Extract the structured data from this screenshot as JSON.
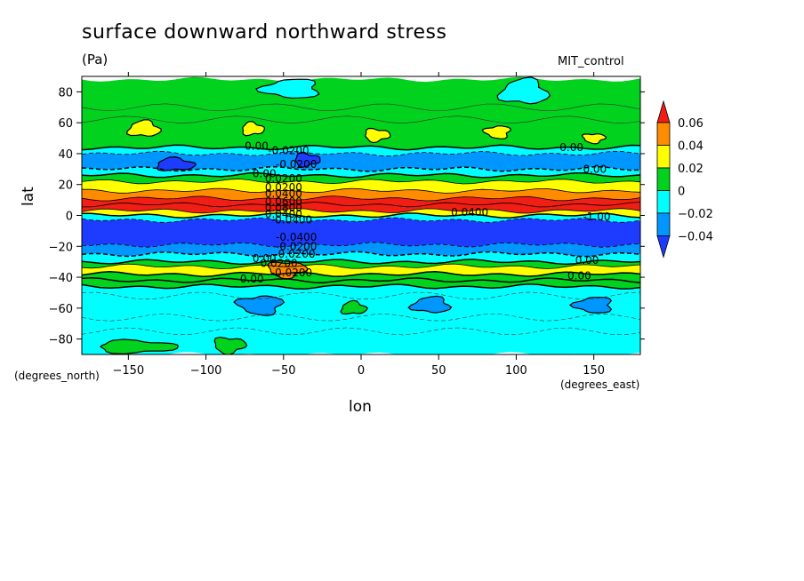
{
  "chart_data": {
    "type": "heatmap",
    "title": "surface downward northward stress",
    "units": "(Pa)",
    "dataset": "MIT_control",
    "xlabel": "lon",
    "ylabel": "lat",
    "x_units": "(degrees_east)",
    "y_units": "(degrees_north)",
    "xlim": [
      -180,
      180
    ],
    "ylim": [
      -90,
      90
    ],
    "x_ticks": [
      -150,
      -100,
      -50,
      0,
      50,
      100,
      150
    ],
    "y_ticks": [
      80,
      60,
      40,
      20,
      0,
      -20,
      -40,
      -60,
      -80
    ],
    "legend": {
      "position": "right",
      "levels": [
        "0.06",
        "0.04",
        "0.02",
        "0",
        "−0.02",
        "−0.04"
      ],
      "colors": [
        "#f01e14",
        "#ff8c00",
        "#ffff00",
        "#00d21e",
        "#00ffff",
        "#0096ff",
        "#1e3cff"
      ]
    },
    "bands": [
      {
        "lat_min": 44,
        "lat_max": 88,
        "value": 0.01
      },
      {
        "lat_min": 40,
        "lat_max": 44,
        "value": -0.01
      },
      {
        "lat_min": 30,
        "lat_max": 40,
        "value": -0.03
      },
      {
        "lat_min": 26,
        "lat_max": 30,
        "value": -0.01
      },
      {
        "lat_min": 22,
        "lat_max": 26,
        "value": 0.01
      },
      {
        "lat_min": 16,
        "lat_max": 22,
        "value": 0.03
      },
      {
        "lat_min": 11,
        "lat_max": 16,
        "value": 0.05
      },
      {
        "lat_min": 7,
        "lat_max": 11,
        "value": 0.07
      },
      {
        "lat_min": 3,
        "lat_max": 7,
        "value": 0.09
      },
      {
        "lat_min": 0,
        "lat_max": 3,
        "value": 0.03
      },
      {
        "lat_min": -3,
        "lat_max": 0,
        "value": -0.01
      },
      {
        "lat_min": -19,
        "lat_max": -3,
        "value": -0.05
      },
      {
        "lat_min": -25,
        "lat_max": -19,
        "value": -0.03
      },
      {
        "lat_min": -30,
        "lat_max": -25,
        "value": -0.01
      },
      {
        "lat_min": -33,
        "lat_max": -30,
        "value": 0.01
      },
      {
        "lat_min": -38,
        "lat_max": -33,
        "value": 0.03
      },
      {
        "lat_min": -42,
        "lat_max": -38,
        "value": 0.01
      },
      {
        "lat_min": -46,
        "lat_max": -42,
        "value": 0.01
      },
      {
        "lat_min": -90,
        "lat_max": -46,
        "value": -0.01
      }
    ],
    "blobs": [
      {
        "lon": -140,
        "lat": 56,
        "rlon": 10,
        "rlat": 5,
        "value": 0.03
      },
      {
        "lon": -70,
        "lat": 56,
        "rlon": 7,
        "rlat": 4,
        "value": 0.03
      },
      {
        "lon": 10,
        "lat": 52,
        "rlon": 8,
        "rlat": 4,
        "value": 0.03
      },
      {
        "lon": 150,
        "lat": 50,
        "rlon": 7,
        "rlat": 3,
        "value": 0.03
      },
      {
        "lon": 88,
        "lat": 54,
        "rlon": 8,
        "rlat": 4,
        "value": 0.03
      },
      {
        "lon": -45,
        "lat": 82,
        "rlon": 18,
        "rlat": 6,
        "value": -0.01
      },
      {
        "lon": 105,
        "lat": 80,
        "rlon": 15,
        "rlat": 8,
        "value": -0.01
      },
      {
        "lon": -120,
        "lat": 33,
        "rlon": 12,
        "rlat": 4,
        "value": -0.05
      },
      {
        "lon": -35,
        "lat": 36,
        "rlon": 8,
        "rlat": 4,
        "value": -0.05
      },
      {
        "lon": -48,
        "lat": -35,
        "rlon": 12,
        "rlat": 5,
        "value": 0.05
      },
      {
        "lon": -65,
        "lat": -58,
        "rlon": 14,
        "rlat": 6,
        "value": -0.03
      },
      {
        "lon": 150,
        "lat": -58,
        "rlon": 12,
        "rlat": 5,
        "value": -0.03
      },
      {
        "lon": 45,
        "lat": -58,
        "rlon": 12,
        "rlat": 5,
        "value": -0.03
      },
      {
        "lon": -5,
        "lat": -60,
        "rlon": 8,
        "rlat": 4,
        "value": 0.01
      },
      {
        "lon": -145,
        "lat": -85,
        "rlon": 25,
        "rlat": 4,
        "value": 0.01
      },
      {
        "lon": -85,
        "lat": -84,
        "rlon": 10,
        "rlat": 5,
        "value": 0.01
      }
    ],
    "contour_labels": [
      {
        "text": "0.00",
        "lon": -75,
        "lat": 45
      },
      {
        "text": "-0.0200",
        "lon": -60,
        "lat": 42
      },
      {
        "text": "-0.0200",
        "lon": -55,
        "lat": 33
      },
      {
        "text": "0.00",
        "lon": -70,
        "lat": 27
      },
      {
        "text": "0.0200",
        "lon": -62,
        "lat": 24
      },
      {
        "text": "0.0200",
        "lon": -62,
        "lat": 18
      },
      {
        "text": "0.0400",
        "lon": -62,
        "lat": 14
      },
      {
        "text": "0.0600",
        "lon": -62,
        "lat": 9
      },
      {
        "text": "0.0800",
        "lon": -62,
        "lat": 5
      },
      {
        "text": "0.0400",
        "lon": -62,
        "lat": 1
      },
      {
        "text": "-0.0400",
        "lon": -58,
        "lat": -3
      },
      {
        "text": "-0.0400",
        "lon": -55,
        "lat": -14
      },
      {
        "text": "-0.0200",
        "lon": -55,
        "lat": -20
      },
      {
        "text": "-0.0200",
        "lon": -56,
        "lat": -25
      },
      {
        "text": "0.00",
        "lon": -70,
        "lat": -28
      },
      {
        "text": "0.0200",
        "lon": -65,
        "lat": -31
      },
      {
        "text": "-0.0200",
        "lon": -58,
        "lat": -37
      },
      {
        "text": "0.00",
        "lon": -78,
        "lat": -41
      },
      {
        "text": "0.0400",
        "lon": 58,
        "lat": 2
      },
      {
        "text": "0.00",
        "lon": 128,
        "lat": 44
      },
      {
        "text": "0.00",
        "lon": 143,
        "lat": 30
      },
      {
        "text": "-1.00",
        "lon": 143,
        "lat": -1
      },
      {
        "text": "0.00",
        "lon": 138,
        "lat": -29
      },
      {
        "text": "0.00",
        "lon": 133,
        "lat": -39
      }
    ]
  }
}
